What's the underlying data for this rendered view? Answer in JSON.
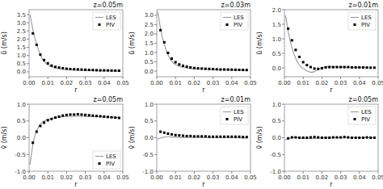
{
  "chart_data": [
    {
      "type": "line",
      "title": "z=0.05m",
      "xlabel": "r",
      "ylabel": "ũ (m/s)",
      "xlim": [
        0.0,
        0.05
      ],
      "ylim": [
        -0.3,
        3.8
      ],
      "xticks": [
        {
          "value": 0.0,
          "label": "0.00"
        },
        0.01,
        0.02,
        0.03,
        0.04,
        0.05
      ],
      "yticks": [
        {
          "value": 0.0,
          "label": "0.0"
        },
        0.5,
        {
          "value": 1.0,
          "label": "1.0"
        },
        1.5,
        {
          "value": 2.0,
          "label": "2.0"
        },
        2.5,
        {
          "value": 3.0,
          "label": "3.0"
        },
        3.5
      ],
      "legend": "upper right",
      "grid": false,
      "series": [
        {
          "name": "LES",
          "type": "line",
          "color": "#999999",
          "x": [
            0.0005,
            0.001,
            0.0015,
            0.002,
            0.003,
            0.004,
            0.005,
            0.006,
            0.007,
            0.008,
            0.009,
            0.01,
            0.012,
            0.015,
            0.018,
            0.022,
            0.027,
            0.033,
            0.04,
            0.048
          ],
          "values": [
            3.5,
            3.2,
            2.9,
            2.6,
            2.1,
            1.7,
            1.35,
            1.05,
            0.82,
            0.64,
            0.52,
            0.42,
            0.31,
            0.22,
            0.16,
            0.12,
            0.09,
            0.07,
            0.06,
            0.05
          ]
        },
        {
          "name": "PIV",
          "type": "scatter",
          "color": "black",
          "marker": "square",
          "x": [
            0.002,
            0.004,
            0.006,
            0.008,
            0.01,
            0.012,
            0.014,
            0.016,
            0.018,
            0.02,
            0.022,
            0.024,
            0.026,
            0.028,
            0.03,
            0.032,
            0.034,
            0.036,
            0.038,
            0.04,
            0.042,
            0.044,
            0.046,
            0.048
          ],
          "values": [
            2.35,
            1.65,
            1.05,
            0.72,
            0.52,
            0.38,
            0.3,
            0.26,
            0.22,
            0.19,
            0.17,
            0.16,
            0.15,
            0.14,
            0.13,
            0.12,
            0.11,
            0.1,
            0.09,
            0.09,
            0.085,
            0.08,
            0.075,
            0.07
          ]
        }
      ]
    },
    {
      "type": "line",
      "title": "z=0.03m",
      "xlabel": "r",
      "ylabel": "ũ (m/s)",
      "xlim": [
        0.0,
        0.05
      ],
      "ylim": [
        -0.3,
        3.3
      ],
      "xticks": [
        {
          "value": 0.0,
          "label": "0.00"
        },
        0.01,
        0.02,
        0.03,
        0.04,
        0.05
      ],
      "yticks": [
        {
          "value": 0.0,
          "label": "0.0"
        },
        0.5,
        {
          "value": 1.0,
          "label": "1.0"
        },
        1.5,
        {
          "value": 2.0,
          "label": "2.0"
        },
        2.5,
        {
          "value": 3.0,
          "label": "3.0"
        }
      ],
      "legend": "upper right",
      "grid": false,
      "series": [
        {
          "name": "LES",
          "type": "line",
          "color": "#999999",
          "x": [
            0.0005,
            0.001,
            0.0015,
            0.002,
            0.003,
            0.004,
            0.005,
            0.006,
            0.007,
            0.008,
            0.009,
            0.01,
            0.012,
            0.015,
            0.018,
            0.022,
            0.027,
            0.033,
            0.04,
            0.048
          ],
          "values": [
            3.2,
            2.9,
            2.6,
            2.3,
            1.8,
            1.45,
            1.15,
            0.88,
            0.68,
            0.53,
            0.43,
            0.35,
            0.26,
            0.19,
            0.14,
            0.11,
            0.09,
            0.07,
            0.06,
            0.05
          ]
        },
        {
          "name": "PIV",
          "type": "scatter",
          "color": "black",
          "marker": "square",
          "x": [
            0.002,
            0.004,
            0.006,
            0.008,
            0.01,
            0.012,
            0.014,
            0.016,
            0.018,
            0.02,
            0.022,
            0.024,
            0.026,
            0.028,
            0.03,
            0.032,
            0.034,
            0.036,
            0.038,
            0.04,
            0.042,
            0.044,
            0.046,
            0.048
          ],
          "values": [
            2.2,
            1.55,
            0.98,
            0.67,
            0.48,
            0.36,
            0.29,
            0.24,
            0.2,
            0.17,
            0.15,
            0.14,
            0.13,
            0.12,
            0.11,
            0.1,
            0.09,
            0.09,
            0.085,
            0.08,
            0.075,
            0.07,
            0.065,
            0.06
          ]
        }
      ]
    },
    {
      "type": "line",
      "title": "z=0.01m",
      "xlabel": "r",
      "ylabel": "ũ (m/s)",
      "xlim": [
        0.0,
        0.05
      ],
      "ylim": [
        -0.3,
        2.0
      ],
      "xticks": [
        {
          "value": 0.0,
          "label": "0.00"
        },
        0.01,
        0.02,
        0.03,
        0.04,
        0.05
      ],
      "yticks": [
        {
          "value": 0.0,
          "label": "0.0"
        },
        0.5,
        {
          "value": 1.0,
          "label": "1.0"
        },
        1.5,
        {
          "value": 2.0,
          "label": "2.0"
        }
      ],
      "legend": "upper right",
      "grid": false,
      "series": [
        {
          "name": "LES",
          "type": "line",
          "color": "#999999",
          "x": [
            0.0005,
            0.001,
            0.0015,
            0.002,
            0.003,
            0.004,
            0.005,
            0.006,
            0.007,
            0.008,
            0.009,
            0.01,
            0.012,
            0.014,
            0.016,
            0.018,
            0.02,
            0.023,
            0.027,
            0.032,
            0.038,
            0.045
          ],
          "values": [
            1.8,
            1.65,
            1.45,
            1.25,
            0.95,
            0.7,
            0.5,
            0.33,
            0.2,
            0.1,
            0.03,
            -0.02,
            -0.1,
            -0.15,
            -0.13,
            -0.05,
            0.02,
            0.05,
            0.04,
            0.03,
            0.02,
            0.01
          ]
        },
        {
          "name": "PIV",
          "type": "scatter",
          "color": "black",
          "marker": "square",
          "x": [
            0.002,
            0.004,
            0.006,
            0.008,
            0.01,
            0.012,
            0.014,
            0.016,
            0.018,
            0.02,
            0.022,
            0.024,
            0.026,
            0.028,
            0.03,
            0.032,
            0.034,
            0.036,
            0.038,
            0.04,
            0.042,
            0.044,
            0.046,
            0.048
          ],
          "values": [
            1.35,
            0.95,
            0.62,
            0.38,
            0.2,
            0.1,
            0.03,
            -0.02,
            -0.03,
            -0.01,
            0.02,
            0.03,
            0.03,
            0.03,
            0.03,
            0.03,
            0.03,
            0.02,
            0.02,
            0.02,
            0.02,
            0.015,
            0.01,
            0.01
          ]
        }
      ]
    },
    {
      "type": "line",
      "title": "z=0.05m",
      "xlabel": "r",
      "ylabel": "ṽ (m/s)",
      "xlim": [
        0.0,
        0.05
      ],
      "ylim": [
        -1.0,
        1.0
      ],
      "xticks": [
        {
          "value": 0.0,
          "label": "0.00"
        },
        0.01,
        0.02,
        0.03,
        0.04,
        0.05
      ],
      "yticks": [
        {
          "value": -1.0,
          "label": "-1.0"
        },
        -0.5,
        {
          "value": 0.0,
          "label": "0.0"
        },
        0.5,
        {
          "value": 1.0,
          "label": "1.0"
        }
      ],
      "legend": "lower right",
      "grid": false,
      "series": [
        {
          "name": "LES",
          "type": "line",
          "color": "#999999",
          "x": [
            0.0005,
            0.001,
            0.0015,
            0.002,
            0.003,
            0.004,
            0.005,
            0.006,
            0.007,
            0.008,
            0.009,
            0.01,
            0.012,
            0.015,
            0.018,
            0.022,
            0.027,
            0.033,
            0.04,
            0.048
          ],
          "values": [
            -0.8,
            -0.6,
            -0.4,
            -0.2,
            0.05,
            0.2,
            0.32,
            0.4,
            0.46,
            0.5,
            0.53,
            0.55,
            0.58,
            0.61,
            0.63,
            0.64,
            0.64,
            0.63,
            0.62,
            0.6
          ]
        },
        {
          "name": "PIV",
          "type": "scatter",
          "color": "black",
          "marker": "square",
          "x": [
            0.002,
            0.004,
            0.006,
            0.008,
            0.01,
            0.012,
            0.014,
            0.016,
            0.018,
            0.02,
            0.022,
            0.024,
            0.026,
            0.028,
            0.03,
            0.032,
            0.034,
            0.036,
            0.038,
            0.04,
            0.042,
            0.044,
            0.046,
            0.048
          ],
          "values": [
            -0.15,
            0.18,
            0.35,
            0.45,
            0.52,
            0.56,
            0.6,
            0.63,
            0.66,
            0.68,
            0.69,
            0.69,
            0.7,
            0.69,
            0.68,
            0.67,
            0.66,
            0.65,
            0.64,
            0.63,
            0.62,
            0.61,
            0.6,
            0.59
          ]
        }
      ]
    },
    {
      "type": "line",
      "title": "z=0.01m",
      "xlabel": "r",
      "ylabel": "ṽ (m/s)",
      "xlim": [
        0.0,
        0.05
      ],
      "ylim": [
        -1.0,
        1.0
      ],
      "xticks": [
        {
          "value": 0.0,
          "label": "0.00"
        },
        0.01,
        0.02,
        0.03,
        0.04,
        0.05
      ],
      "yticks": [
        {
          "value": -1.0,
          "label": "-1.0"
        },
        -0.5,
        {
          "value": 0.0,
          "label": "0.0"
        },
        0.5,
        {
          "value": 1.0,
          "label": "1.0"
        }
      ],
      "legend": "upper right",
      "grid": false,
      "series": [
        {
          "name": "LES",
          "type": "line",
          "color": "#999999",
          "x": [
            0.0005,
            0.001,
            0.0015,
            0.002,
            0.003,
            0.004,
            0.005,
            0.006,
            0.007,
            0.008,
            0.009,
            0.01,
            0.012,
            0.015,
            0.018,
            0.022,
            0.027,
            0.033,
            0.04,
            0.048
          ],
          "values": [
            -0.05,
            -0.03,
            -0.02,
            -0.01,
            0.01,
            0.02,
            0.03,
            0.03,
            0.03,
            0.02,
            0.02,
            0.02,
            0.01,
            0.01,
            0.01,
            0.01,
            0.0,
            0.0,
            0.0,
            -0.01
          ]
        },
        {
          "name": "PIV",
          "type": "scatter",
          "color": "black",
          "marker": "square",
          "x": [
            0.002,
            0.004,
            0.006,
            0.008,
            0.01,
            0.012,
            0.014,
            0.016,
            0.018,
            0.02,
            0.022,
            0.024,
            0.026,
            0.028,
            0.03,
            0.032,
            0.034,
            0.036,
            0.038,
            0.04,
            0.042,
            0.044,
            0.046,
            0.048
          ],
          "values": [
            0.18,
            0.15,
            0.12,
            0.1,
            0.08,
            0.07,
            0.06,
            0.05,
            0.05,
            0.04,
            0.04,
            0.04,
            0.04,
            0.03,
            0.03,
            0.03,
            0.03,
            0.03,
            0.03,
            0.03,
            0.03,
            0.03,
            0.02,
            0.02
          ]
        }
      ]
    },
    {
      "type": "line",
      "title": "z=0.05m",
      "xlabel": "r",
      "ylabel": "ṽ (m/s)",
      "xlim": [
        0.0,
        0.05
      ],
      "ylim": [
        -1.0,
        1.0
      ],
      "xticks": [
        {
          "value": 0.0,
          "label": "0.00"
        },
        0.01,
        0.02,
        0.03,
        0.04,
        0.05
      ],
      "yticks": [
        {
          "value": -1.0,
          "label": "-1.0"
        },
        -0.5,
        {
          "value": 0.0,
          "label": "0.0"
        },
        0.5,
        {
          "value": 1.0,
          "label": "1.0"
        }
      ],
      "legend": "upper right",
      "grid": false,
      "series": [
        {
          "name": "LES",
          "type": "line",
          "color": "#999999",
          "x": [
            0.0005,
            0.001,
            0.0015,
            0.002,
            0.003,
            0.004,
            0.005,
            0.006,
            0.007,
            0.008,
            0.009,
            0.01,
            0.012,
            0.015,
            0.018,
            0.022,
            0.027,
            0.033,
            0.04,
            0.048
          ],
          "values": [
            -0.06,
            -0.05,
            -0.04,
            -0.03,
            -0.01,
            0.0,
            0.01,
            0.01,
            0.0,
            -0.01,
            -0.01,
            -0.02,
            -0.02,
            -0.02,
            -0.01,
            0.0,
            0.0,
            0.0,
            0.0,
            0.0
          ]
        },
        {
          "name": "PIV",
          "type": "scatter",
          "color": "black",
          "marker": "square",
          "x": [
            0.002,
            0.004,
            0.006,
            0.008,
            0.01,
            0.012,
            0.014,
            0.016,
            0.018,
            0.02,
            0.022,
            0.024,
            0.026,
            0.028,
            0.03,
            0.032,
            0.034,
            0.036,
            0.038,
            0.04,
            0.042,
            0.044,
            0.046,
            0.048
          ],
          "values": [
            -0.02,
            0.01,
            0.01,
            0.0,
            0.0,
            0.0,
            0.01,
            0.02,
            0.01,
            0.0,
            0.0,
            0.0,
            0.01,
            0.01,
            0.01,
            0.02,
            0.01,
            0.0,
            0.0,
            0.0,
            0.0,
            0.01,
            0.0,
            0.0
          ]
        }
      ]
    }
  ]
}
